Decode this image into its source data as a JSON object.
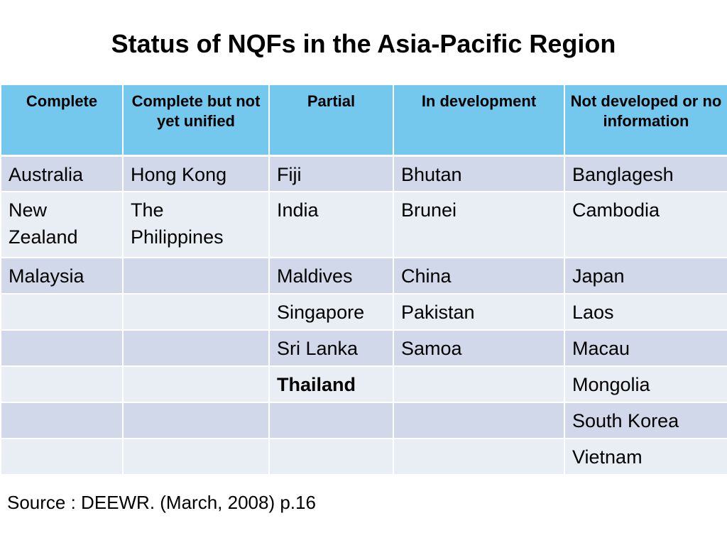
{
  "title": "Status of NQFs in the Asia-Pacific Region",
  "table": {
    "headers": [
      "Complete",
      "Complete but not yet unified",
      "Partial",
      "In development",
      "Not developed or no information"
    ],
    "rows": [
      [
        "Australia",
        "Hong Kong",
        "Fiji",
        "Bhutan",
        "Banglagesh"
      ],
      [
        "New Zealand",
        "The Philippines",
        "India",
        "Brunei",
        "Cambodia"
      ],
      [
        "Malaysia",
        "",
        "Maldives",
        "China",
        "Japan"
      ],
      [
        "",
        "",
        "Singapore",
        "Pakistan",
        "Laos"
      ],
      [
        "",
        "",
        "Sri Lanka",
        "Samoa",
        "Macau"
      ],
      [
        "",
        "",
        "Thailand",
        "",
        "Mongolia"
      ],
      [
        "",
        "",
        "",
        "",
        "South Korea"
      ],
      [
        "",
        "",
        "",
        "",
        "Vietnam"
      ]
    ]
  },
  "source": "Source : DEEWR. (March, 2008) p.16",
  "colors": {
    "header_bg": "#74c8ee",
    "row_odd_bg": "#d0d8e9",
    "row_even_bg": "#e9edf4"
  }
}
